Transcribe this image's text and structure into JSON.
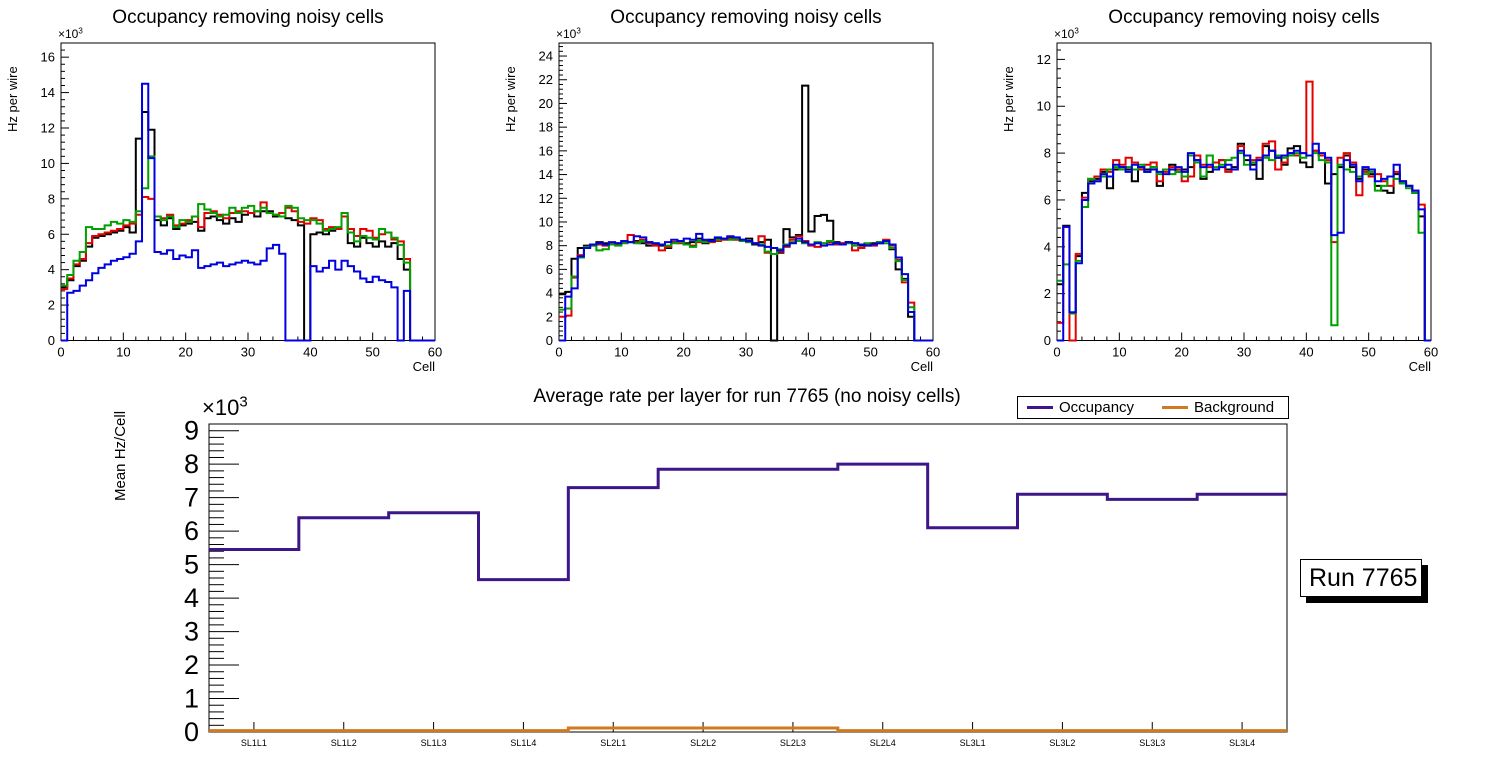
{
  "run_label": "Run 7765",
  "colors": {
    "frame": "#000000",
    "series_black": "#000000",
    "series_red": "#e50000",
    "series_green": "#00a000",
    "series_blue": "#0000e0",
    "occupancy": "#3d1788",
    "background": "#cf7a1e"
  },
  "chart_data": [
    {
      "type": "line",
      "style": "histogram-step",
      "title": "Occupancy removing noisy cells",
      "xlabel": "Cell",
      "ylabel": "Hz per wire",
      "scale": {
        "mantissa": "×10",
        "exponent": "3"
      },
      "xlim": [
        0,
        60
      ],
      "ylim": [
        0,
        16.8
      ],
      "yticks": [
        0,
        2,
        4,
        6,
        8,
        10,
        12,
        14,
        16
      ],
      "xticks": [
        0,
        10,
        20,
        30,
        40,
        50,
        60
      ],
      "grid": false,
      "series": [
        {
          "name": "series-black",
          "color": "#000000",
          "values": [
            3.0,
            3.4,
            4.2,
            4.5,
            5.3,
            5.8,
            5.9,
            6.0,
            6.1,
            6.2,
            6.4,
            6.1,
            11.4,
            12.9,
            11.9,
            6.8,
            6.5,
            6.9,
            6.3,
            6.5,
            6.6,
            6.7,
            6.2,
            6.9,
            7.0,
            6.8,
            6.6,
            6.9,
            6.7,
            7.1,
            7.2,
            7.0,
            7.3,
            7.3,
            7.0,
            7.0,
            6.9,
            6.8,
            6.5,
            0,
            6.0,
            6.1,
            6.0,
            6.2,
            6.3,
            7.0,
            5.5,
            5.3,
            5.8,
            5.5,
            5.3,
            5.6,
            5.3,
            5.5,
            4.6,
            4.0,
            0,
            0,
            0,
            0
          ]
        },
        {
          "name": "series-red",
          "color": "#e50000",
          "values": [
            2.9,
            3.5,
            4.3,
            4.6,
            5.5,
            5.9,
            6.0,
            6.1,
            6.2,
            6.3,
            6.5,
            6.6,
            7.1,
            8.1,
            8.0,
            7.0,
            6.9,
            7.1,
            6.5,
            6.6,
            6.8,
            7.0,
            6.4,
            7.2,
            7.3,
            7.1,
            6.9,
            7.2,
            7.3,
            7.3,
            7.2,
            7.3,
            7.8,
            7.2,
            7.1,
            7.2,
            7.5,
            7.3,
            6.7,
            6.6,
            6.9,
            6.8,
            6.3,
            6.4,
            6.3,
            7.0,
            6.3,
            5.9,
            6.3,
            6.2,
            5.8,
            6.0,
            6.1,
            5.7,
            5.6,
            4.6,
            0,
            0,
            0,
            0
          ]
        },
        {
          "name": "series-green",
          "color": "#00a000",
          "values": [
            3.1,
            3.7,
            4.5,
            5.0,
            6.4,
            6.3,
            6.3,
            6.5,
            6.7,
            6.6,
            6.8,
            6.7,
            7.3,
            8.6,
            10.4,
            7.0,
            6.8,
            7.0,
            6.4,
            6.8,
            6.7,
            7.0,
            7.7,
            7.4,
            7.2,
            7.0,
            7.1,
            7.5,
            7.2,
            7.5,
            7.6,
            7.3,
            7.5,
            7.2,
            7.1,
            7.0,
            7.6,
            7.5,
            6.9,
            6.8,
            6.8,
            6.6,
            6.2,
            6.3,
            6.4,
            7.2,
            6.1,
            5.6,
            5.9,
            5.8,
            5.7,
            6.3,
            6.1,
            5.8,
            5.4,
            4.4,
            0,
            0,
            0,
            0
          ]
        },
        {
          "name": "series-blue",
          "color": "#0000e0",
          "values": [
            0,
            2.7,
            2.8,
            3.1,
            3.4,
            3.8,
            4.1,
            4.3,
            4.5,
            4.6,
            4.7,
            4.9,
            5.6,
            14.5,
            10.3,
            5.0,
            4.9,
            5.1,
            4.6,
            4.8,
            4.7,
            5.1,
            4.1,
            4.2,
            4.3,
            4.4,
            4.2,
            4.3,
            4.4,
            4.5,
            4.4,
            4.3,
            4.5,
            5.2,
            5.4,
            4.9,
            0,
            0,
            0,
            0,
            4.2,
            3.9,
            4.1,
            4.5,
            4.0,
            4.5,
            4.2,
            3.9,
            3.5,
            3.3,
            3.6,
            3.4,
            3.3,
            3.0,
            0,
            2.8,
            0,
            0,
            0,
            0
          ]
        }
      ]
    },
    {
      "type": "line",
      "style": "histogram-step",
      "title": "Occupancy removing noisy cells",
      "xlabel": "Cell",
      "ylabel": "Hz per wire",
      "scale": {
        "mantissa": "×10",
        "exponent": "3"
      },
      "xlim": [
        0,
        60
      ],
      "ylim": [
        0,
        25.1
      ],
      "yticks": [
        0,
        2,
        4,
        6,
        8,
        10,
        12,
        14,
        16,
        18,
        20,
        22,
        24
      ],
      "xticks": [
        0,
        10,
        20,
        30,
        40,
        50,
        60
      ],
      "grid": false,
      "series": [
        {
          "name": "series-black",
          "color": "#000000",
          "values": [
            3.9,
            4.1,
            6.9,
            7.8,
            8.0,
            8.1,
            8.3,
            8.2,
            8.1,
            8.2,
            8.4,
            8.3,
            8.4,
            8.2,
            8.0,
            8.1,
            8.0,
            7.8,
            8.3,
            8.4,
            8.2,
            8.3,
            8.6,
            8.2,
            8.5,
            8.6,
            8.6,
            8.7,
            8.6,
            8.5,
            8.6,
            8.1,
            8.3,
            8.5,
            0,
            7.4,
            9.4,
            8.7,
            8.9,
            21.5,
            9.2,
            10.5,
            10.6,
            10.1,
            8.3,
            8.2,
            8.3,
            8.2,
            8.0,
            8.1,
            8.2,
            8.3,
            8.4,
            7.7,
            6.0,
            5.2,
            2.0,
            0,
            0,
            0
          ]
        },
        {
          "name": "series-red",
          "color": "#e50000",
          "values": [
            2.0,
            2.1,
            5.3,
            7.2,
            7.9,
            8.0,
            8.1,
            8.0,
            8.2,
            8.1,
            8.3,
            8.9,
            8.3,
            8.5,
            8.2,
            8.0,
            7.6,
            7.9,
            8.3,
            8.2,
            8.1,
            8.0,
            8.3,
            8.4,
            8.3,
            8.4,
            8.5,
            8.6,
            8.5,
            8.4,
            8.3,
            8.2,
            8.8,
            7.4,
            7.3,
            7.5,
            7.9,
            8.5,
            8.8,
            8.4,
            8.0,
            7.9,
            8.2,
            8.3,
            8.1,
            8.2,
            8.3,
            7.6,
            7.8,
            8.1,
            8.0,
            8.2,
            8.5,
            8.0,
            6.8,
            4.9,
            3.2,
            0,
            0,
            0
          ]
        },
        {
          "name": "series-green",
          "color": "#00a000",
          "values": [
            2.6,
            2.7,
            5.4,
            7.0,
            7.9,
            8.0,
            7.6,
            7.7,
            8.1,
            8.0,
            8.2,
            8.3,
            8.2,
            8.4,
            8.3,
            8.2,
            8.1,
            8.0,
            8.2,
            8.3,
            8.1,
            7.9,
            8.4,
            8.3,
            8.4,
            8.5,
            8.6,
            8.5,
            8.6,
            8.4,
            8.3,
            8.2,
            8.1,
            7.5,
            7.3,
            7.7,
            8.1,
            8.3,
            8.4,
            8.2,
            8.1,
            8.3,
            8.2,
            8.4,
            8.2,
            8.1,
            8.2,
            8.0,
            8.1,
            8.2,
            8.1,
            8.3,
            8.2,
            7.8,
            6.7,
            5.1,
            2.8,
            0,
            0,
            0
          ]
        },
        {
          "name": "series-blue",
          "color": "#0000e0",
          "values": [
            0,
            3.7,
            4.4,
            7.1,
            7.8,
            8.1,
            8.2,
            8.1,
            8.3,
            8.2,
            8.4,
            8.3,
            8.8,
            8.7,
            8.3,
            8.2,
            8.1,
            8.3,
            8.5,
            8.4,
            8.6,
            8.5,
            9.0,
            8.5,
            8.4,
            8.7,
            8.6,
            8.8,
            8.7,
            8.5,
            8.4,
            8.2,
            8.0,
            7.9,
            7.8,
            7.6,
            8.0,
            8.2,
            8.6,
            8.3,
            8.1,
            8.2,
            8.0,
            8.1,
            8.2,
            8.1,
            8.3,
            8.2,
            8.1,
            8.0,
            8.1,
            8.2,
            8.4,
            8.1,
            7.0,
            5.6,
            2.4,
            0,
            0,
            0
          ]
        }
      ]
    },
    {
      "type": "line",
      "style": "histogram-step",
      "title": "Occupancy removing noisy cells",
      "xlabel": "Cell",
      "ylabel": "Hz per wire",
      "scale": {
        "mantissa": "×10",
        "exponent": "3"
      },
      "xlim": [
        0,
        60
      ],
      "ylim": [
        0,
        12.7
      ],
      "yticks": [
        0,
        2,
        4,
        6,
        8,
        10,
        12
      ],
      "xticks": [
        0,
        10,
        20,
        30,
        40,
        50,
        60
      ],
      "grid": false,
      "series": [
        {
          "name": "series-black",
          "color": "#000000",
          "values": [
            2.4,
            4.9,
            1.2,
            3.6,
            6.3,
            6.8,
            6.9,
            7.2,
            6.5,
            7.3,
            7.4,
            7.3,
            6.8,
            7.4,
            7.3,
            7.4,
            6.6,
            7.3,
            7.5,
            7.2,
            7.3,
            7.4,
            7.7,
            6.9,
            7.2,
            7.3,
            7.7,
            7.3,
            7.4,
            8.4,
            7.7,
            7.5,
            6.9,
            8.3,
            8.1,
            7.8,
            7.5,
            8.2,
            8.3,
            7.6,
            7.4,
            8.1,
            7.9,
            6.7,
            7.1,
            7.4,
            7.9,
            7.4,
            6.9,
            7.3,
            7.1,
            6.6,
            6.4,
            6.3,
            7.1,
            6.8,
            6.6,
            6.3,
            5.3,
            0
          ]
        },
        {
          "name": "series-red",
          "color": "#e50000",
          "values": [
            0.75,
            4.85,
            0,
            3.7,
            6.1,
            6.9,
            7.0,
            7.3,
            7.2,
            7.7,
            7.5,
            7.8,
            7.6,
            7.3,
            7.5,
            7.6,
            6.8,
            7.2,
            7.4,
            7.3,
            6.8,
            7.0,
            7.9,
            7.5,
            7.4,
            7.6,
            7.7,
            7.2,
            7.3,
            8.3,
            7.9,
            7.7,
            7.8,
            8.4,
            8.5,
            7.3,
            7.6,
            8.0,
            7.9,
            8.0,
            11.05,
            8.1,
            7.9,
            7.7,
            4.2,
            7.8,
            8.0,
            7.6,
            6.2,
            7.2,
            7.0,
            7.1,
            6.8,
            6.6,
            7.2,
            6.7,
            6.6,
            6.4,
            5.8,
            0
          ]
        },
        {
          "name": "series-green",
          "color": "#00a000",
          "values": [
            2.55,
            3.25,
            1.15,
            3.4,
            5.7,
            6.9,
            6.8,
            7.0,
            7.3,
            7.4,
            7.3,
            7.4,
            7.3,
            7.5,
            7.2,
            7.4,
            7.1,
            7.3,
            7.1,
            7.2,
            7.0,
            7.9,
            7.6,
            7.0,
            7.9,
            7.4,
            7.5,
            7.7,
            7.8,
            8.0,
            7.5,
            7.6,
            7.7,
            7.8,
            7.7,
            7.9,
            7.8,
            7.9,
            8.0,
            7.8,
            7.9,
            8.0,
            7.7,
            7.6,
            0.65,
            7.5,
            7.3,
            7.2,
            7.0,
            7.1,
            7.2,
            6.4,
            6.6,
            7.0,
            6.9,
            6.7,
            6.5,
            6.3,
            4.6,
            0
          ]
        },
        {
          "name": "series-blue",
          "color": "#0000e0",
          "values": [
            0,
            4.85,
            1.2,
            3.3,
            6.0,
            6.7,
            6.8,
            7.1,
            7.0,
            7.5,
            7.4,
            7.2,
            7.5,
            7.4,
            7.2,
            7.3,
            7.2,
            7.1,
            7.3,
            7.4,
            7.2,
            8.0,
            7.7,
            7.4,
            7.5,
            7.3,
            7.4,
            7.5,
            7.3,
            8.1,
            7.9,
            7.3,
            7.7,
            7.9,
            8.1,
            7.8,
            7.9,
            8.0,
            8.1,
            8.0,
            7.9,
            8.4,
            8.0,
            7.8,
            4.5,
            4.6,
            7.7,
            7.5,
            6.8,
            7.4,
            7.3,
            6.8,
            6.9,
            7.0,
            7.5,
            6.8,
            6.6,
            6.4,
            5.6,
            0
          ]
        }
      ]
    },
    {
      "type": "line",
      "style": "step",
      "title": "Average rate per layer for run 7765 (no noisy cells)",
      "xlabel": "",
      "ylabel": "Mean Hz/Cell",
      "scale": {
        "mantissa": "×10",
        "exponent": "3"
      },
      "ylim": [
        0,
        9.2
      ],
      "yticks": [
        0,
        1,
        2,
        3,
        4,
        5,
        6,
        7,
        8,
        9
      ],
      "grid": false,
      "legend_position": "top-right",
      "categories": [
        "SL1L1",
        "SL1L2",
        "SL1L3",
        "SL1L4",
        "SL2L1",
        "SL2L2",
        "SL2L3",
        "SL2L4",
        "SL3L1",
        "SL3L2",
        "SL3L3",
        "SL3L4"
      ],
      "series": [
        {
          "name": "Occupancy",
          "color": "#3d1788",
          "values": [
            5.45,
            6.4,
            6.55,
            4.55,
            7.3,
            7.85,
            7.85,
            8.0,
            6.1,
            7.1,
            6.95,
            7.1
          ]
        },
        {
          "name": "Background",
          "color": "#cf7a1e",
          "values": [
            0.04,
            0.04,
            0.04,
            0.04,
            0.12,
            0.12,
            0.12,
            0.04,
            0.04,
            0.04,
            0.04,
            0.04
          ]
        }
      ]
    }
  ]
}
